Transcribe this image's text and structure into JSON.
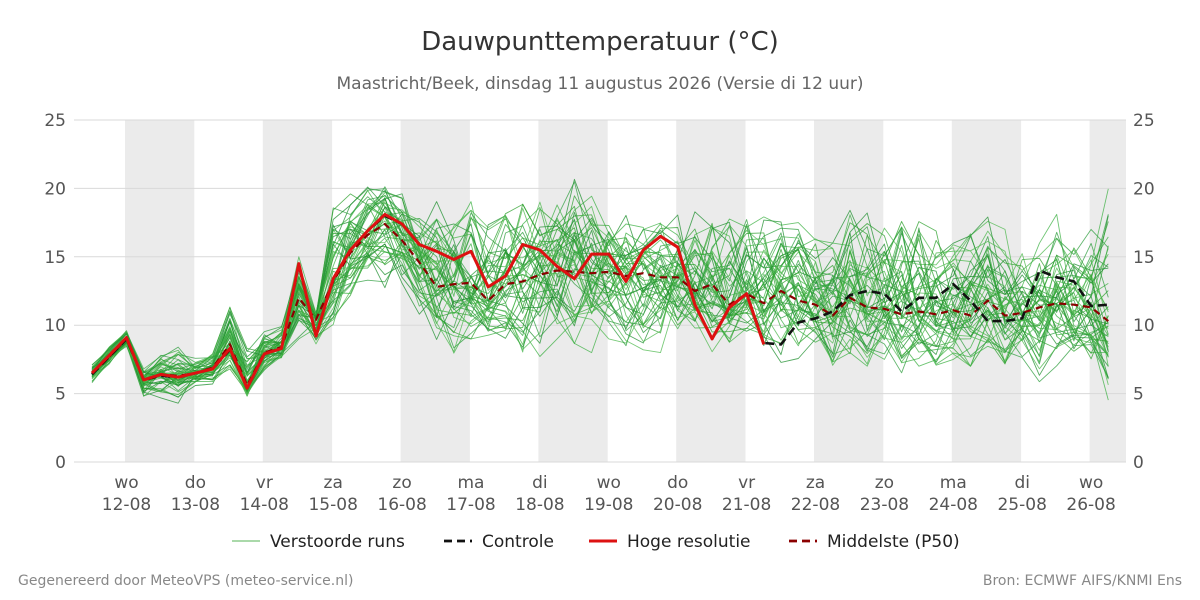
{
  "chart_data": {
    "type": "line",
    "title": "Dauwpunttemperatuur (°C)",
    "subtitle": "Maastricht/Beek, dinsdag 11 augustus 2026 (Versie di 12 uur)",
    "ylim": [
      0,
      25
    ],
    "yticks": [
      0,
      5,
      10,
      15,
      20,
      25
    ],
    "grid": true,
    "legend_position": "bottom",
    "x_start": "2026-08-12 00:00",
    "x_end": "2026-08-26 12:00",
    "weekend_like_shading": true,
    "xtick_labels": [
      {
        "day": "wo",
        "date": "12-08"
      },
      {
        "day": "do",
        "date": "13-08"
      },
      {
        "day": "vr",
        "date": "14-08"
      },
      {
        "day": "za",
        "date": "15-08"
      },
      {
        "day": "zo",
        "date": "16-08"
      },
      {
        "day": "ma",
        "date": "17-08"
      },
      {
        "day": "di",
        "date": "18-08"
      },
      {
        "day": "wo",
        "date": "19-08"
      },
      {
        "day": "do",
        "date": "20-08"
      },
      {
        "day": "vr",
        "date": "21-08"
      },
      {
        "day": "za",
        "date": "22-08"
      },
      {
        "day": "zo",
        "date": "23-08"
      },
      {
        "day": "ma",
        "date": "24-08"
      },
      {
        "day": "di",
        "date": "25-08"
      },
      {
        "day": "wo",
        "date": "26-08"
      }
    ],
    "time_step_hours": 6,
    "start_offset_hours": -12,
    "legend": [
      {
        "name": "Verstoorde runs",
        "color": "#2ca02c",
        "style": "thin"
      },
      {
        "name": "Controle",
        "color": "#111111",
        "style": "dashed"
      },
      {
        "name": "Hoge resolutie",
        "color": "#dd1111",
        "style": "solid"
      },
      {
        "name": "Middelste (P50)",
        "color": "#8b0000",
        "style": "dashed"
      }
    ],
    "series": [
      {
        "name": "Hoge resolutie",
        "values": [
          6.5,
          7.8,
          9.1,
          6.0,
          6.4,
          6.2,
          6.5,
          6.8,
          8.3,
          5.4,
          7.9,
          8.3,
          14.5,
          9.2,
          13.4,
          15.5,
          16.9,
          18.1,
          17.4,
          15.9,
          15.4,
          14.8,
          15.4,
          12.8,
          13.6,
          15.9,
          15.5,
          14.3,
          13.4,
          15.2,
          15.2,
          13.2,
          15.5,
          16.5,
          15.7,
          11.5,
          9.0,
          11.3,
          12.3,
          8.6
        ]
      },
      {
        "name": "Controle",
        "values": [
          6.4,
          7.7,
          9.0,
          6.0,
          6.3,
          6.2,
          6.5,
          6.8,
          8.2,
          5.4,
          7.9,
          8.3,
          14.4,
          9.2,
          13.4,
          15.5,
          16.9,
          18.0,
          17.4,
          15.9,
          15.4,
          14.8,
          15.4,
          12.8,
          13.6,
          15.9,
          15.5,
          14.3,
          13.4,
          15.2,
          15.2,
          13.2,
          15.5,
          16.5,
          15.7,
          11.5,
          9.0,
          11.3,
          12.3,
          8.7,
          8.6,
          10.2,
          10.5,
          11.0,
          12.2,
          12.5,
          12.3,
          11.0,
          12.0,
          12.0,
          13.0,
          11.8,
          10.3,
          10.3,
          10.5,
          14.0,
          13.5,
          13.2,
          11.4,
          11.5
        ]
      },
      {
        "name": "Middelste (P50)",
        "values": [
          6.5,
          7.7,
          9.0,
          6.0,
          6.4,
          6.3,
          6.5,
          6.9,
          8.6,
          5.6,
          8.0,
          8.4,
          12.0,
          10.4,
          13.2,
          15.3,
          16.6,
          17.4,
          16.2,
          14.6,
          12.8,
          13.0,
          13.1,
          11.8,
          13.0,
          13.2,
          13.7,
          14.0,
          13.9,
          13.8,
          13.9,
          13.6,
          13.8,
          13.5,
          13.5,
          12.5,
          13.0,
          11.5,
          12.3,
          11.6,
          12.5,
          11.8,
          11.5,
          10.7,
          12.0,
          11.3,
          11.2,
          10.8,
          11.0,
          10.8,
          11.1,
          10.7,
          11.8,
          10.7,
          10.9,
          11.3,
          11.6,
          11.5,
          11.3,
          10.3
        ]
      }
    ],
    "ensemble_members": 50,
    "ensemble_spread": {
      "lower": [
        5.8,
        7.0,
        8.4,
        4.8,
        4.6,
        4.3,
        5.4,
        5.7,
        6.8,
        4.5,
        6.4,
        7.3,
        9.0,
        8.3,
        10.0,
        12.0,
        12.8,
        12.3,
        12.4,
        10.5,
        8.5,
        7.0,
        9.0,
        9.0,
        9.0,
        7.4,
        7.4,
        8.0,
        7.8,
        8.0,
        9.0,
        8.5,
        7.2,
        8.0,
        8.0,
        9.0,
        8.0,
        8.2,
        9.0,
        6.5,
        6.5,
        7.5,
        8.5,
        6.0,
        6.5,
        7.0,
        7.5,
        6.5,
        7.0,
        6.8,
        7.5,
        7.0,
        7.5,
        6.5,
        7.5,
        5.7,
        7.0,
        6.5,
        6.5,
        3.5
      ],
      "upper": [
        7.6,
        8.6,
        9.6,
        6.8,
        7.8,
        8.4,
        7.6,
        8.0,
        11.7,
        8.3,
        9.7,
        9.9,
        15.0,
        11.0,
        19.0,
        19.6,
        20.1,
        20.5,
        19.8,
        18.6,
        20.3,
        18.8,
        19.5,
        20.0,
        20.1,
        19.5,
        19.0,
        19.2,
        21.7,
        20.0,
        19.0,
        18.7,
        18.0,
        17.8,
        18.7,
        20.0,
        19.0,
        19.5,
        19.5,
        18.5,
        18.0,
        17.5,
        17.0,
        16.0,
        18.4,
        18.2,
        17.5,
        18.8,
        19.2,
        17.0,
        16.5,
        16.8,
        18.2,
        17.0,
        16.8,
        16.5,
        18.1,
        17.0,
        17.0,
        20.0
      ]
    }
  },
  "footer": {
    "left": "Gegenereerd door MeteoVPS (meteo-service.nl)",
    "right": "Bron: ECMWF AIFS/KNMI Ens"
  }
}
